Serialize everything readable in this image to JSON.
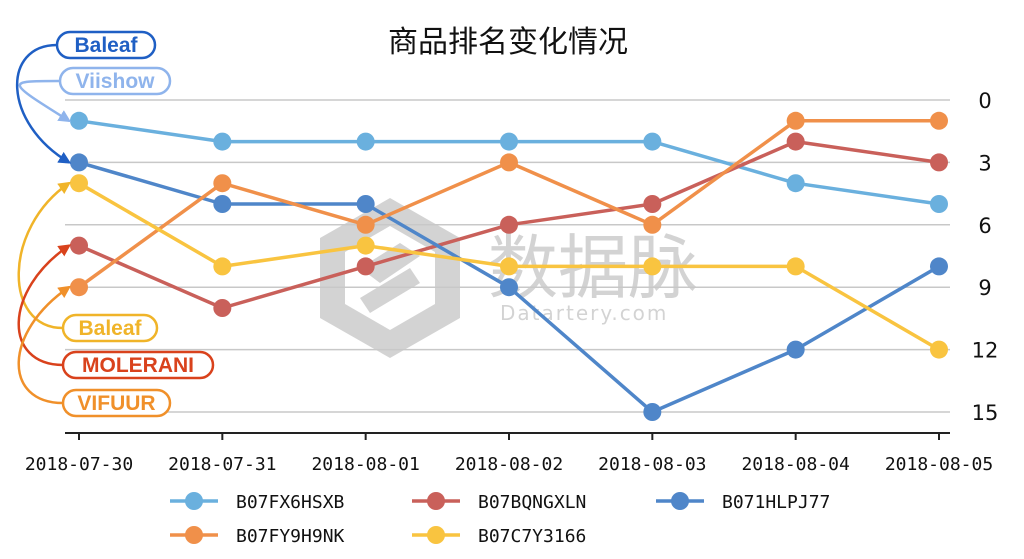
{
  "chart_data": {
    "type": "line",
    "title": "商品排名变化情况",
    "categories": [
      "2018-07-30",
      "2018-07-31",
      "2018-08-01",
      "2018-08-02",
      "2018-08-03",
      "2018-08-04",
      "2018-08-05"
    ],
    "y_axis": {
      "position": "right",
      "inverted": true,
      "min": 0,
      "max": 16,
      "ticks": [
        0,
        3,
        6,
        9,
        12,
        15
      ]
    },
    "grid": "horizontal",
    "legend_position": "bottom",
    "series": [
      {
        "name": "B07FX6HSXB",
        "color": "#6ab0de",
        "values": [
          1,
          2,
          2,
          2,
          2,
          4,
          5
        ]
      },
      {
        "name": "B07BQNGXLN",
        "color": "#c9605a",
        "values": [
          7,
          10,
          8,
          6,
          5,
          2,
          3
        ]
      },
      {
        "name": "B071HLPJ77",
        "color": "#4f86c9",
        "values": [
          3,
          5,
          5,
          9,
          15,
          12,
          8
        ]
      },
      {
        "name": "B07FY9H9NK",
        "color": "#f0904a",
        "values": [
          9,
          4,
          6,
          3,
          6,
          1,
          1
        ]
      },
      {
        "name": "B07C7Y3166",
        "color": "#f9c440",
        "values": [
          4,
          8,
          7,
          8,
          8,
          8,
          12
        ]
      }
    ],
    "annotations": [
      {
        "label": "Baleaf",
        "color": "#1f5fc4",
        "target_series": "B071HLPJ77"
      },
      {
        "label": "Viishow",
        "color": "#8fb4ec",
        "target_series": "B07FX6HSXB"
      },
      {
        "label": "Baleaf",
        "color": "#f0b429",
        "target_series": "B07C7Y3166"
      },
      {
        "label": "MOLERANI",
        "color": "#d9421c",
        "target_series": "B07BQNGXLN"
      },
      {
        "label": "VIFUUR",
        "color": "#f0902a",
        "target_series": "B07FY9H9NK"
      }
    ]
  },
  "watermark": {
    "text_cn": "数据脉",
    "text_en": "Datartery.com"
  }
}
